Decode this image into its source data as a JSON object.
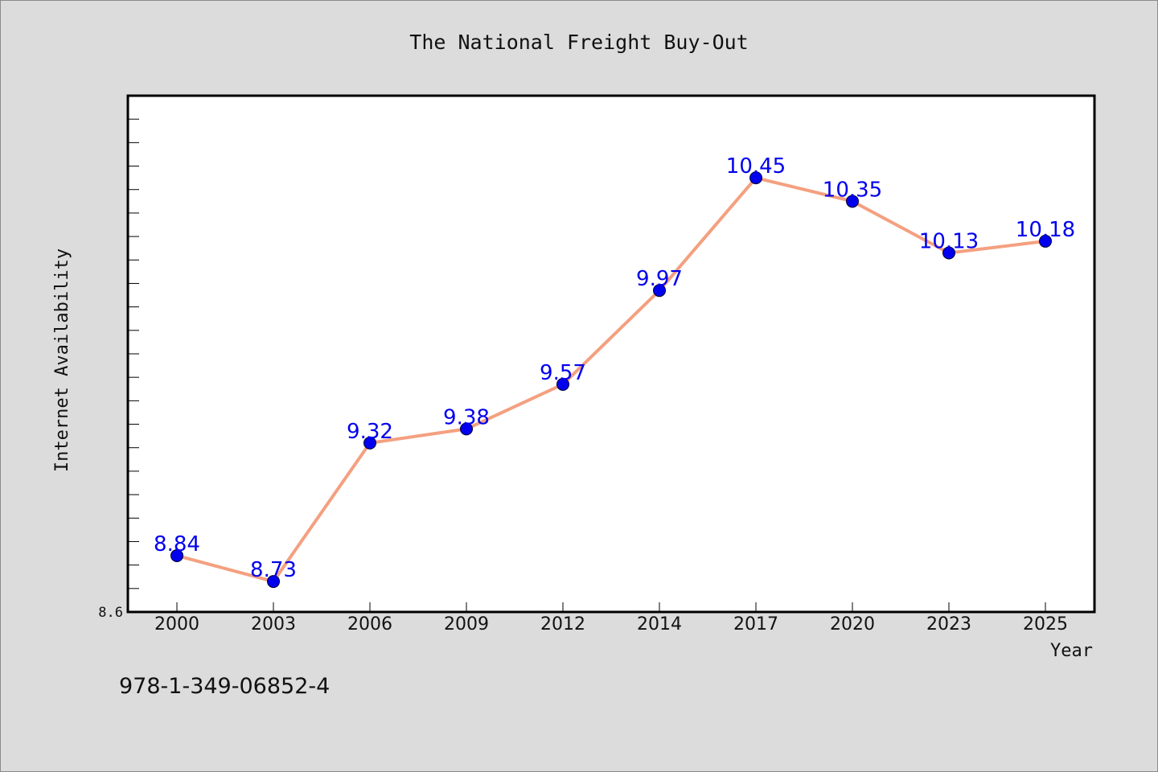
{
  "chart_data": {
    "type": "line",
    "title": "The National Freight Buy-Out",
    "xlabel": "Year",
    "ylabel": "Internet Availability",
    "categories": [
      "2000",
      "2003",
      "2006",
      "2009",
      "2012",
      "2014",
      "2017",
      "2020",
      "2023",
      "2025"
    ],
    "values": [
      8.84,
      8.73,
      9.32,
      9.38,
      9.57,
      9.97,
      10.45,
      10.35,
      10.13,
      10.18
    ],
    "data_labels": [
      "8.84",
      "8.73",
      "9.32",
      "9.38",
      "9.57",
      "9.97",
      "10.45",
      "10.35",
      "10.13",
      "10.18"
    ],
    "ylim": [
      8.6,
      10.8
    ],
    "y_tick_labels": [
      "8.6"
    ],
    "y_minor_tick_step": 0.1,
    "grid": false,
    "colors": {
      "line": "#f4a080",
      "marker": "#0000ee",
      "data_label": "#0000ee",
      "plot_background": "#ffffff",
      "figure_background": "#dcdcdc"
    }
  },
  "footnote": "978-1-349-06852-4"
}
